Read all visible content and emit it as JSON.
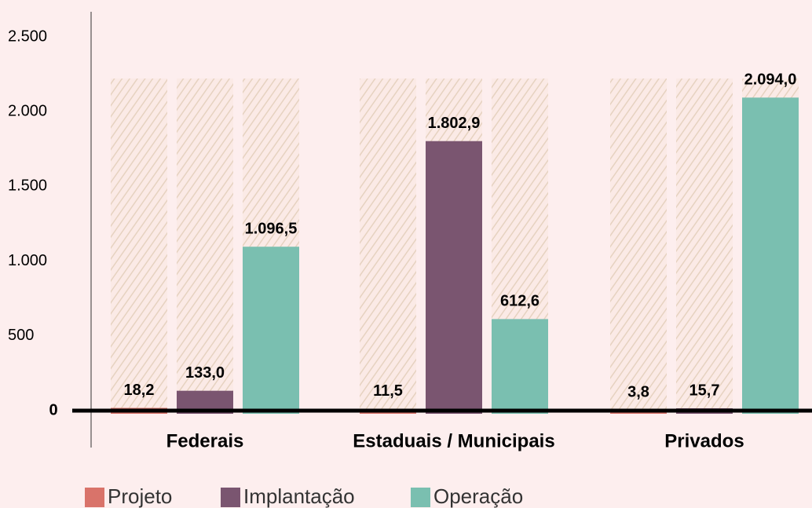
{
  "chart_data": {
    "type": "bar",
    "categories": [
      "Federais",
      "Estaduais / Municipais",
      "Privados"
    ],
    "series": [
      {
        "name": "Projeto",
        "color": "#d9736a",
        "values": [
          18.2,
          11.5,
          3.8
        ],
        "value_labels": [
          "18,2",
          "11,5",
          "3,8"
        ]
      },
      {
        "name": "Implantação",
        "color": "#7a5570",
        "values": [
          133.0,
          1802.9,
          15.7
        ],
        "value_labels": [
          "133,0",
          "1.802,9",
          "15,7"
        ]
      },
      {
        "name": "Operação",
        "color": "#7abfb0",
        "values": [
          1096.5,
          612.6,
          2094.0
        ],
        "value_labels": [
          "1.096,5",
          "612,6",
          "2.094,0"
        ]
      }
    ],
    "ylim": [
      0,
      2500
    ],
    "yticks": [
      0,
      500,
      {
        "value": 1000,
        "label": "1.000"
      },
      {
        "value": 1500,
        "label": "1.500"
      },
      {
        "value": 2000,
        "label": "2.000"
      },
      {
        "value": 2500,
        "label": "2.500"
      }
    ],
    "legend": "bottom"
  }
}
